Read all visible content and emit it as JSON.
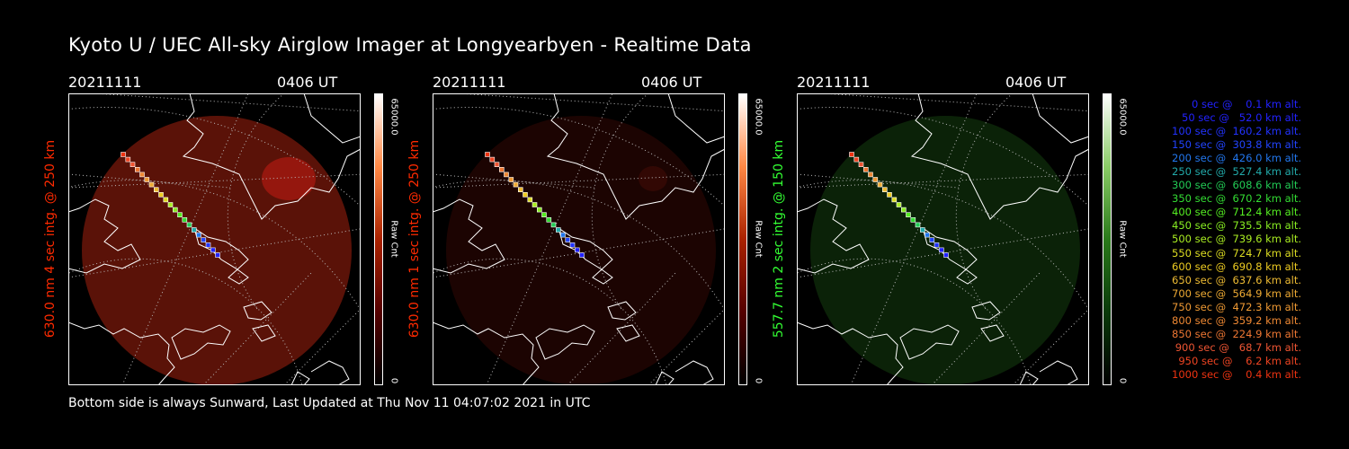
{
  "title": "Kyoto U / UEC All-sky Airglow Imager at Longyearbyen - Realtime Data",
  "footer": "Bottom side is always Sunward, Last Updated at Thu Nov 11 04:07:02 2021 in UTC",
  "panels": [
    {
      "date": "20211111",
      "time": "0406 UT",
      "ylabel": "630.0 nm 4 sec intg. @ 250 km",
      "label_color": "#ff2a00",
      "cbar_max": "65000.0",
      "cbar_unit": "Raw Cnt",
      "cbar_min": "0",
      "cmap": "red",
      "glow_color": "#5a1208"
    },
    {
      "date": "20211111",
      "time": "0406 UT",
      "ylabel": "630.0 nm 1 sec intg. @ 250 km",
      "label_color": "#ff2a00",
      "cbar_max": "65000.0",
      "cbar_unit": "Raw Cnt",
      "cbar_min": "0",
      "cmap": "red",
      "glow_color": "#1c0402"
    },
    {
      "date": "20211111",
      "time": "0406 UT",
      "ylabel": "557.7 nm 2 sec intg. @ 150 km",
      "label_color": "#33ff33",
      "cbar_max": "65000.0",
      "cbar_unit": "Raw Cnt",
      "cbar_min": "0",
      "cmap": "green",
      "glow_color": "#0b2208"
    }
  ],
  "legend": [
    {
      "text": "0 sec @    0.1 km alt.",
      "color": "#2222ff"
    },
    {
      "text": "50 sec @   52.0 km alt.",
      "color": "#2222ff"
    },
    {
      "text": "100 sec @  160.2 km alt.",
      "color": "#2233ff"
    },
    {
      "text": "150 sec @  303.8 km alt.",
      "color": "#2244ff"
    },
    {
      "text": "200 sec @  426.0 km alt.",
      "color": "#2277ee"
    },
    {
      "text": "250 sec @  527.4 km alt.",
      "color": "#22aaaa"
    },
    {
      "text": "300 sec @  608.6 km alt.",
      "color": "#22cc55"
    },
    {
      "text": "350 sec @  670.2 km alt.",
      "color": "#33dd33"
    },
    {
      "text": "400 sec @  712.4 km alt.",
      "color": "#55ee22"
    },
    {
      "text": "450 sec @  735.5 km alt.",
      "color": "#88ee22"
    },
    {
      "text": "500 sec @  739.6 km alt.",
      "color": "#aaee22"
    },
    {
      "text": "550 sec @  724.7 km alt.",
      "color": "#dddd22"
    },
    {
      "text": "600 sec @  690.8 km alt.",
      "color": "#eecc22"
    },
    {
      "text": "650 sec @  637.6 km alt.",
      "color": "#eebb33"
    },
    {
      "text": "700 sec @  564.9 km alt.",
      "color": "#eeaa33"
    },
    {
      "text": "750 sec @  472.3 km alt.",
      "color": "#ee9933"
    },
    {
      "text": "800 sec @  359.2 km alt.",
      "color": "#ee8833"
    },
    {
      "text": "850 sec @  224.9 km alt.",
      "color": "#ee7733"
    },
    {
      "text": "900 sec @   68.7 km alt.",
      "color": "#ee5533"
    },
    {
      "text": "950 sec @    6.2 km alt.",
      "color": "#ee4422"
    },
    {
      "text": "1000 sec @    0.4 km alt.",
      "color": "#ee3311"
    }
  ]
}
